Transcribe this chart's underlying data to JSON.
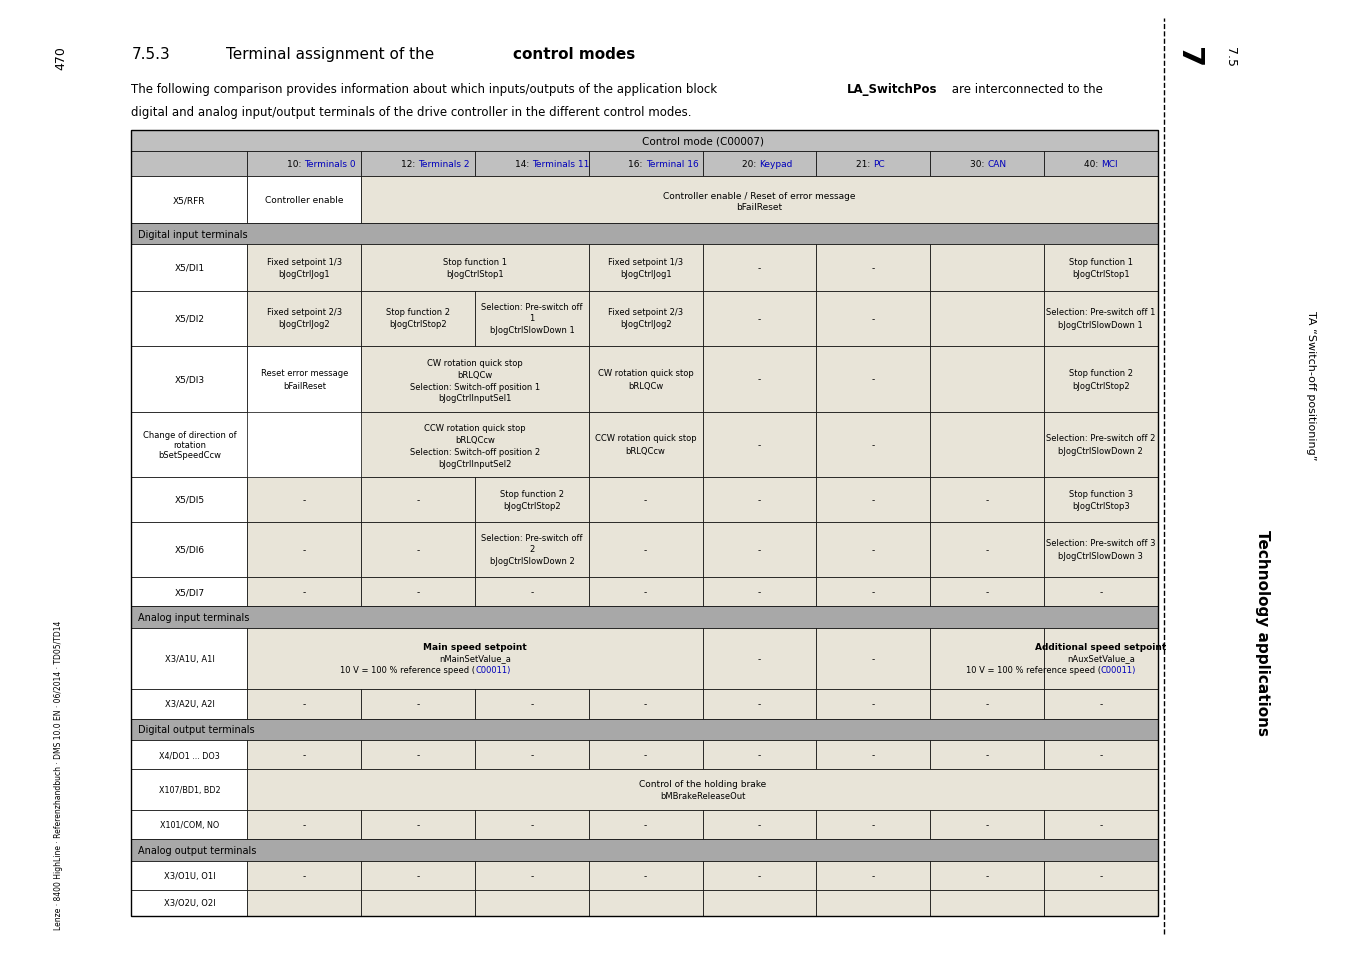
{
  "title_section": "7.5.3",
  "page_number": "470",
  "section_number": "7.5",
  "sidebar_text1": "Technology applications",
  "sidebar_text2": "TA “Switch-off positioning”",
  "col_headers": [
    "10: Terminals 0",
    "12: Terminals 2",
    "14: Terminals 11",
    "16: Terminal 16",
    "20: Keypad",
    "21: PC",
    "30: CAN",
    "40: MCI"
  ],
  "col_links": [
    "Terminals 0",
    "Terminals 2",
    "Terminals 11",
    "Terminal 16",
    "Keypad",
    "PC",
    "CAN",
    "MCI"
  ],
  "bg_header": "#c0c0c0",
  "bg_section": "#a8a8a8",
  "bg_tan": "#e8e4d8",
  "bg_white": "#ffffff",
  "text_blue": "#0000bb",
  "watermark": "Lenze · 8400 HighLine · Referenzhandbuch · DMS 10.0 EN · 06/2014 · TD05/TD14"
}
